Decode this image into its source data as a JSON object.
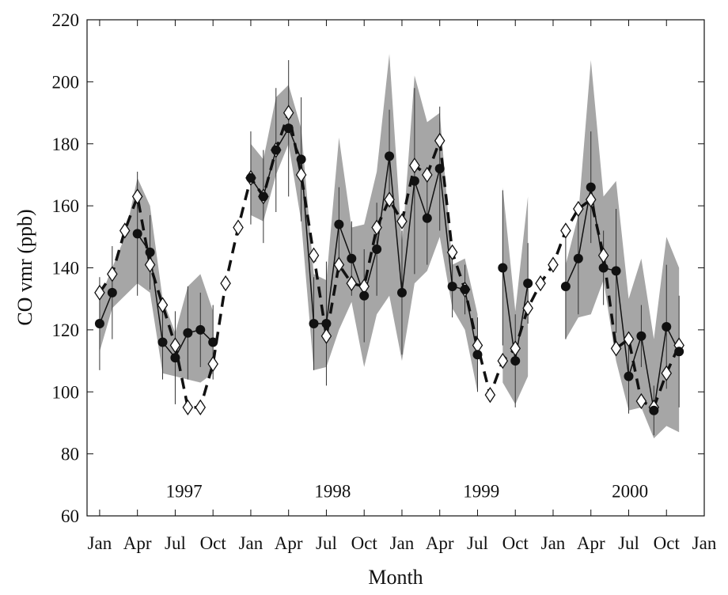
{
  "chart_data": {
    "type": "line",
    "xlabel": "Month",
    "ylabel": "CO vmr (ppb)",
    "xlim": [
      -1,
      48
    ],
    "ylim": [
      60,
      220
    ],
    "yticks": [
      60,
      80,
      100,
      120,
      140,
      160,
      180,
      200,
      220
    ],
    "xticks": [
      {
        "value": 0,
        "label": "Jan"
      },
      {
        "value": 3,
        "label": "Apr"
      },
      {
        "value": 6,
        "label": "Jul"
      },
      {
        "value": 9,
        "label": "Oct"
      },
      {
        "value": 12,
        "label": "Jan"
      },
      {
        "value": 15,
        "label": "Apr"
      },
      {
        "value": 18,
        "label": "Jul"
      },
      {
        "value": 21,
        "label": "Oct"
      },
      {
        "value": 24,
        "label": "Jan"
      },
      {
        "value": 27,
        "label": "Apr"
      },
      {
        "value": 30,
        "label": "Jul"
      },
      {
        "value": 33,
        "label": "Oct"
      },
      {
        "value": 36,
        "label": "Jan"
      },
      {
        "value": 39,
        "label": "Apr"
      },
      {
        "value": 42,
        "label": "Jul"
      },
      {
        "value": 45,
        "label": "Oct"
      },
      {
        "value": 48,
        "label": "Jan"
      }
    ],
    "year_labels": [
      "1997",
      "1998",
      "1999",
      "2000"
    ],
    "x": [
      0,
      1,
      2,
      3,
      4,
      5,
      6,
      7,
      8,
      9,
      10,
      11,
      12,
      13,
      14,
      15,
      16,
      17,
      18,
      19,
      20,
      21,
      22,
      23,
      24,
      25,
      26,
      27,
      28,
      29,
      30,
      31,
      32,
      33,
      34,
      35,
      36,
      37,
      38,
      39,
      40,
      41,
      42,
      43,
      44,
      45,
      46
    ],
    "band": {
      "color": "#a6a6a6",
      "lower": [
        113,
        127,
        131,
        135,
        132,
        106,
        105,
        104,
        103,
        106,
        null,
        null,
        157,
        155,
        170,
        180,
        155,
        107,
        108,
        120,
        129,
        108,
        125,
        131,
        110,
        135,
        139,
        150,
        127,
        120,
        100,
        null,
        103,
        96,
        105,
        null,
        null,
        117,
        124,
        125,
        136,
        110,
        94,
        95,
        85,
        89,
        87
      ],
      "upper": [
        130,
        140,
        150,
        169,
        160,
        130,
        119,
        134,
        138,
        126,
        null,
        null,
        180,
        175,
        195,
        199,
        185,
        138,
        136,
        182,
        153,
        154,
        171,
        209,
        147,
        202,
        187,
        190,
        141,
        143,
        125,
        null,
        166,
        126,
        163,
        null,
        null,
        141,
        157,
        207,
        163,
        168,
        130,
        143,
        117,
        150,
        140
      ]
    },
    "series": [
      {
        "marker": "diamond",
        "color": "#111111",
        "dashed": true,
        "values": [
          132,
          138,
          152,
          163,
          141,
          128,
          115,
          95,
          95,
          109,
          135,
          153,
          169,
          163,
          178,
          190,
          170,
          144,
          118,
          141,
          135,
          134,
          153,
          162,
          155,
          173,
          170,
          181,
          145,
          133,
          115,
          99,
          110,
          114,
          127,
          135,
          141,
          152,
          159,
          162,
          144,
          114,
          117,
          97,
          95,
          106,
          115
        ]
      },
      {
        "marker": "circle",
        "color": "#111111",
        "dashed": false,
        "values": [
          122,
          132,
          null,
          151,
          145,
          116,
          111,
          119,
          120,
          116,
          null,
          null,
          169,
          163,
          178,
          185,
          175,
          122,
          122,
          154,
          143,
          131,
          146,
          176,
          132,
          168,
          156,
          172,
          134,
          133,
          112,
          null,
          140,
          110,
          135,
          null,
          null,
          134,
          143,
          166,
          140,
          139,
          105,
          118,
          94,
          121,
          113
        ],
        "errors": [
          15,
          15,
          null,
          20,
          12,
          12,
          15,
          15,
          12,
          12,
          null,
          null,
          15,
          15,
          20,
          22,
          20,
          15,
          20,
          12,
          12,
          15,
          15,
          15,
          20,
          30,
          15,
          20,
          10,
          8,
          12,
          null,
          25,
          15,
          13,
          null,
          null,
          17,
          18,
          18,
          12,
          20,
          12,
          10,
          8,
          20,
          18
        ]
      }
    ]
  }
}
